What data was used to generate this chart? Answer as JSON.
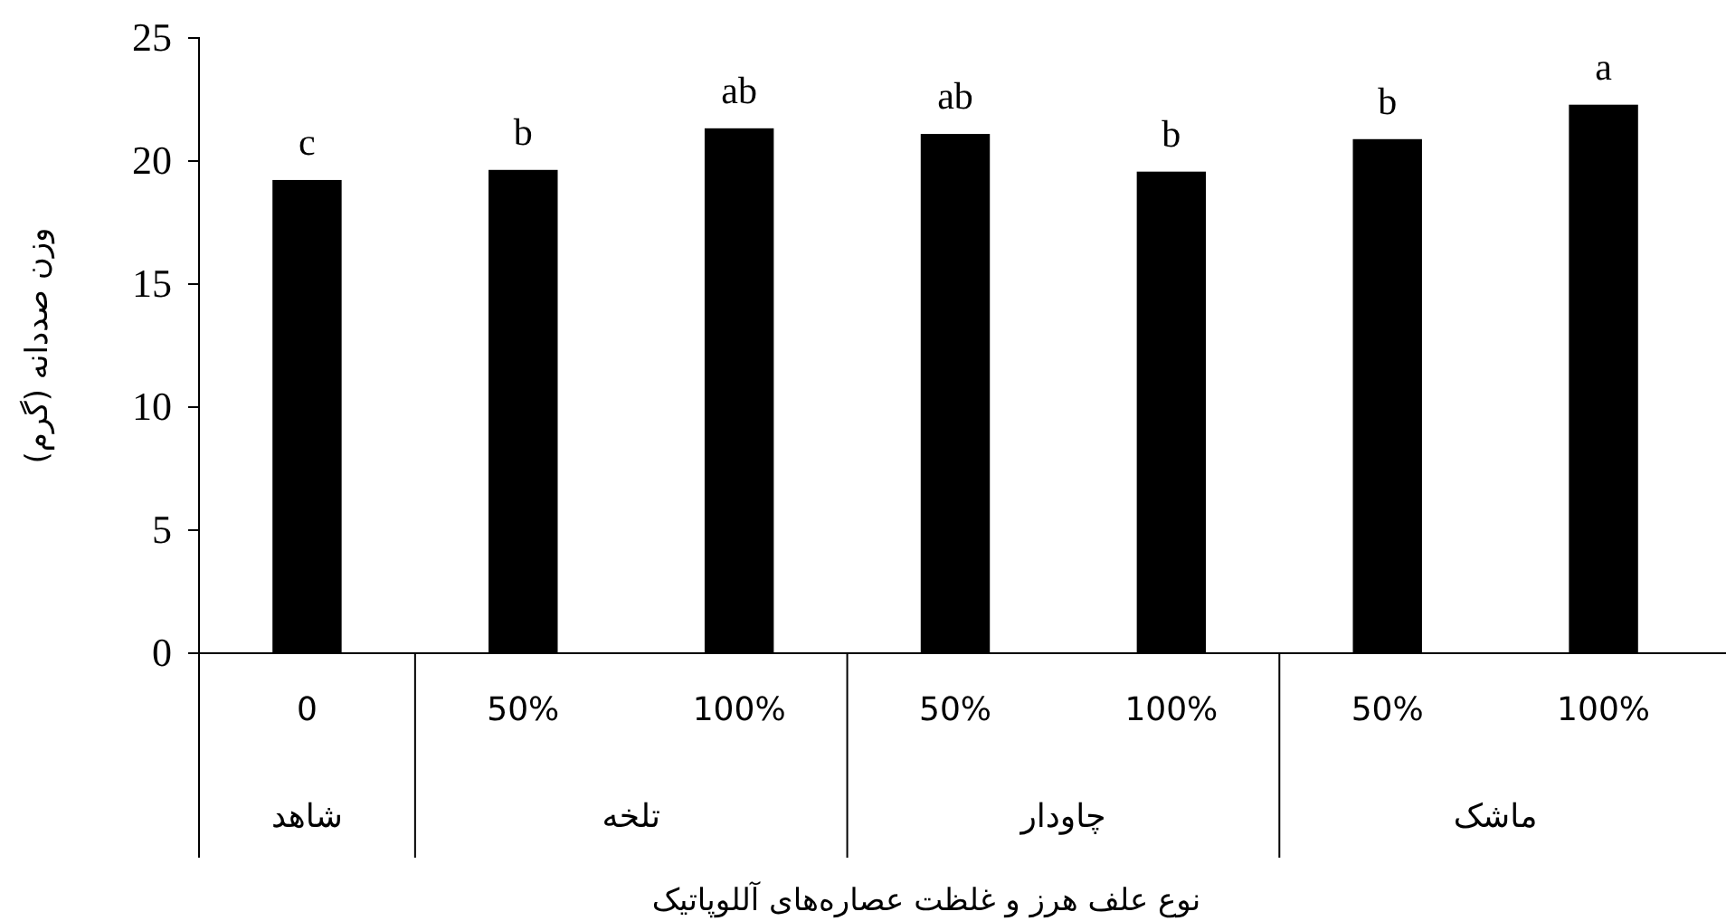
{
  "chart_data": {
    "type": "bar",
    "categories": [
      "0",
      "50%",
      "100%",
      "50%",
      "100%",
      "50%",
      "100%"
    ],
    "values": [
      19.23,
      19.64,
      21.33,
      21.1,
      19.57,
      20.89,
      22.29
    ],
    "value_labels": [
      "c",
      "b",
      "ab",
      "ab",
      "b",
      "b",
      "a"
    ],
    "color": "#000000",
    "ylim": [
      0,
      25
    ],
    "yticks": [
      0,
      5,
      10,
      15,
      20,
      25
    ],
    "ylabel": "وزن صددانه (گرم)",
    "xlabel": "نوع علف هرز و غلظت عصاره‌های آللوپاتیک",
    "annotations": [
      "شاهد",
      "تلخه",
      "چاودار",
      "ماشک"
    ],
    "grid": false
  }
}
